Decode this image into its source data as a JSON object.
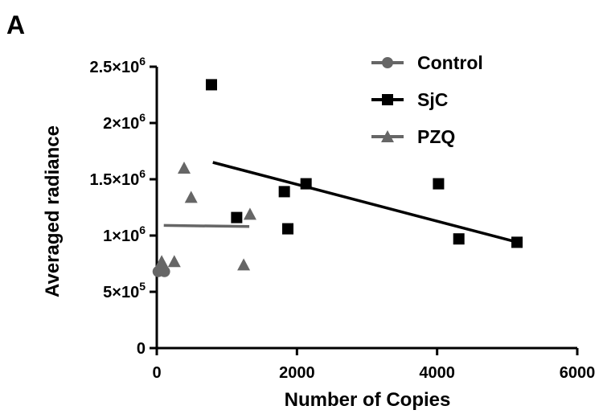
{
  "panel_label": "A",
  "chart_data": {
    "type": "scatter",
    "xlabel": "Number of Copies",
    "ylabel": "Averaged radiance",
    "xlim": [
      0,
      6000
    ],
    "ylim": [
      0,
      2500000
    ],
    "x_ticks": [
      {
        "value": 0,
        "label": "0"
      },
      {
        "value": 2000,
        "label": "2000"
      },
      {
        "value": 4000,
        "label": "4000"
      },
      {
        "value": 6000,
        "label": "6000"
      }
    ],
    "y_ticks": [
      {
        "value": 0,
        "label": "0",
        "mantissa": "0",
        "exponent": ""
      },
      {
        "value": 500000,
        "label": "5×10⁵",
        "mantissa": "5×10",
        "exponent": "5"
      },
      {
        "value": 1000000,
        "label": "1×10⁶",
        "mantissa": "1×10",
        "exponent": "6"
      },
      {
        "value": 1500000,
        "label": "1.5×10⁶",
        "mantissa": "1.5×10",
        "exponent": "6"
      },
      {
        "value": 2000000,
        "label": "2×10⁶",
        "mantissa": "2×10",
        "exponent": "6"
      },
      {
        "value": 2500000,
        "label": "2.5×10⁶",
        "mantissa": "2.5×10",
        "exponent": "6"
      }
    ],
    "grid": false,
    "legend_position": "top-right",
    "series": [
      {
        "name": "Control",
        "marker": "circle",
        "color": "#666666",
        "points": [
          [
            20,
            680000
          ],
          [
            60,
            690000
          ],
          [
            110,
            680000
          ]
        ],
        "fit_line": null
      },
      {
        "name": "SjC",
        "marker": "square",
        "color": "#000000",
        "points": [
          [
            780,
            2340000
          ],
          [
            1140,
            1160000
          ],
          [
            1820,
            1390000
          ],
          [
            1870,
            1060000
          ],
          [
            2130,
            1460000
          ],
          [
            4020,
            1460000
          ],
          [
            4310,
            970000
          ],
          [
            5140,
            940000
          ]
        ],
        "fit_line": [
          [
            800,
            1650000
          ],
          [
            5150,
            940000
          ]
        ]
      },
      {
        "name": "PZQ",
        "marker": "triangle",
        "color": "#666666",
        "points": [
          [
            70,
            770000
          ],
          [
            250,
            770000
          ],
          [
            390,
            1600000
          ],
          [
            490,
            1340000
          ],
          [
            1240,
            740000
          ],
          [
            1330,
            1190000
          ]
        ],
        "fit_line": [
          [
            100,
            1090000
          ],
          [
            1320,
            1080000
          ]
        ]
      }
    ]
  }
}
